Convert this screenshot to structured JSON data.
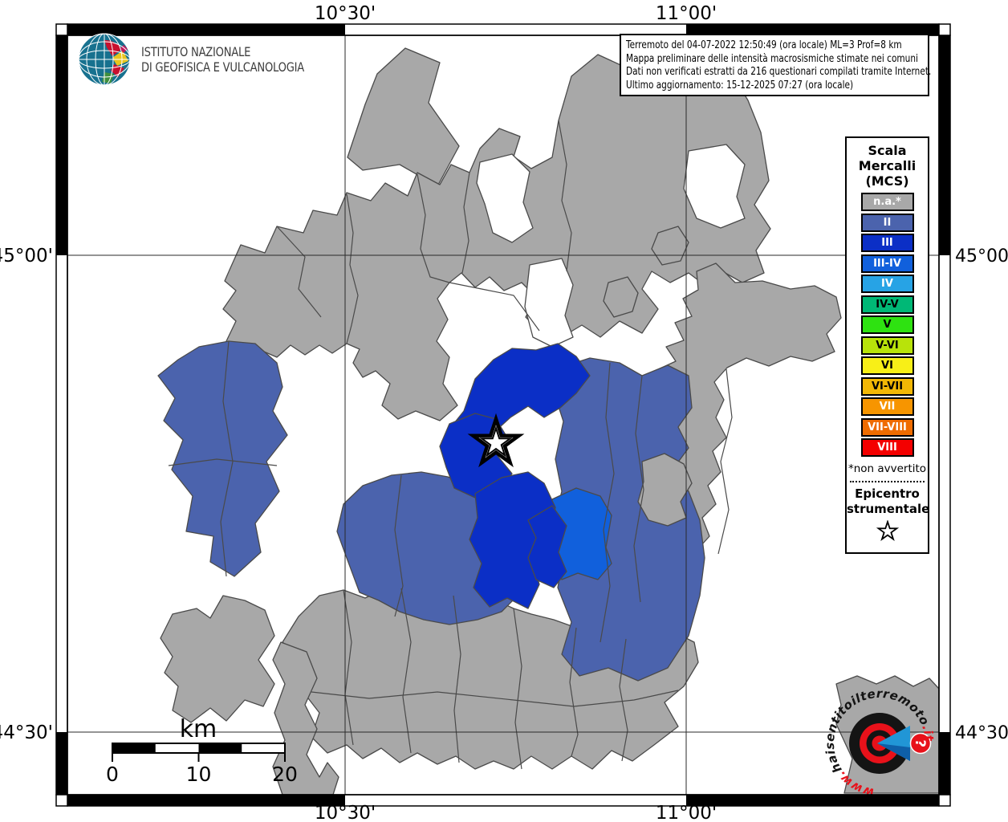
{
  "info_box": {
    "line1": "Terremoto del 04-07-2022 12:50:49 (ora locale) ML=3 Prof=8 km",
    "line2": "Mappa preliminare delle intensità macrosismiche stimate nei comuni",
    "line3": "Dati non verificati estratti da 216 questionari compilati tramite Internet.",
    "line4": "Ultimo aggiornamento: 15-12-2025 07:27 (ora locale)"
  },
  "ingv_logo": {
    "line1": "ISTITUTO NAZIONALE",
    "line2": "DI GEOFISICA E VULCANOLOGIA"
  },
  "axis": {
    "lon": [
      "10°30'",
      "11°00'"
    ],
    "lat": [
      "45°00'",
      "44°30'"
    ]
  },
  "legend": {
    "title_lines": [
      "Scala",
      "Mercalli",
      "(MCS)"
    ],
    "items": [
      {
        "label": "n.a.*",
        "color": "#a8a8a8",
        "text_color": "#ffffff"
      },
      {
        "label": "II",
        "color": "#4b63ad",
        "text_color": "#ffffff"
      },
      {
        "label": "III",
        "color": "#0b2fc6",
        "text_color": "#ffffff"
      },
      {
        "label": "III-IV",
        "color": "#1160dc",
        "text_color": "#ffffff"
      },
      {
        "label": "IV",
        "color": "#27a3e5",
        "text_color": "#ffffff"
      },
      {
        "label": "IV-V",
        "color": "#00b876",
        "text_color": "#000000"
      },
      {
        "label": "V",
        "color": "#2ee211",
        "text_color": "#000000"
      },
      {
        "label": "V-VI",
        "color": "#b8e30a",
        "text_color": "#000000"
      },
      {
        "label": "VI",
        "color": "#f8ef17",
        "text_color": "#000000"
      },
      {
        "label": "VI-VII",
        "color": "#f2b705",
        "text_color": "#000000"
      },
      {
        "label": "VII",
        "color": "#f79500",
        "text_color": "#ffffff"
      },
      {
        "label": "VII-VIII",
        "color": "#ef6c00",
        "text_color": "#ffffff"
      },
      {
        "label": "VIII",
        "color": "#f40000",
        "text_color": "#ffffff"
      }
    ],
    "footnote": "*non avvertito",
    "epicenter_lines": [
      "Epicentro",
      "strumentale"
    ]
  },
  "scale_bar": {
    "unit": "km",
    "ticks": [
      "0",
      "10",
      "20"
    ]
  },
  "watermark": {
    "www": "www.",
    "domain": "haisentitoilterremoto",
    "tld": ".it"
  },
  "map_colors": {
    "not_felt": "#a8a8a8",
    "intensity_ii": "#4b63ad",
    "intensity_iii": "#0b2fc6",
    "intensity_iii_iv": "#1160dc",
    "boundary": "#4a4a4a",
    "background": "#ffffff"
  }
}
